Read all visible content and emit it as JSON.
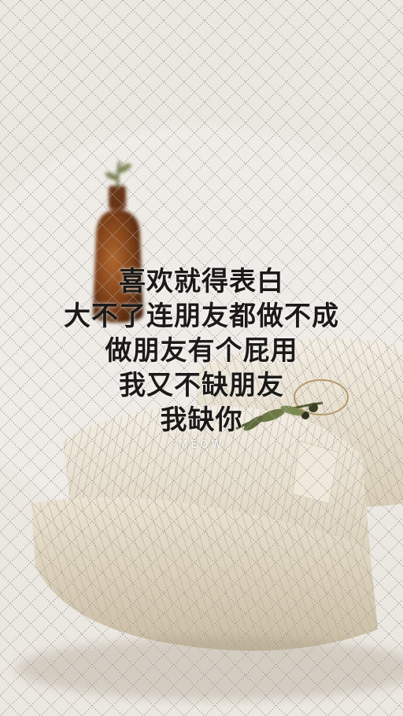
{
  "poem": {
    "lines": [
      "喜欢就得表白",
      "大不了连朋友都做不成",
      "做朋友有个屁用",
      "我又不缺朋友",
      "我缺你"
    ],
    "signature": "-MEOW-"
  },
  "colors": {
    "background": "#ece8e2",
    "bottle": "#8a4a1e",
    "towel": "#e6dcc8",
    "text": "#1b1a18"
  }
}
